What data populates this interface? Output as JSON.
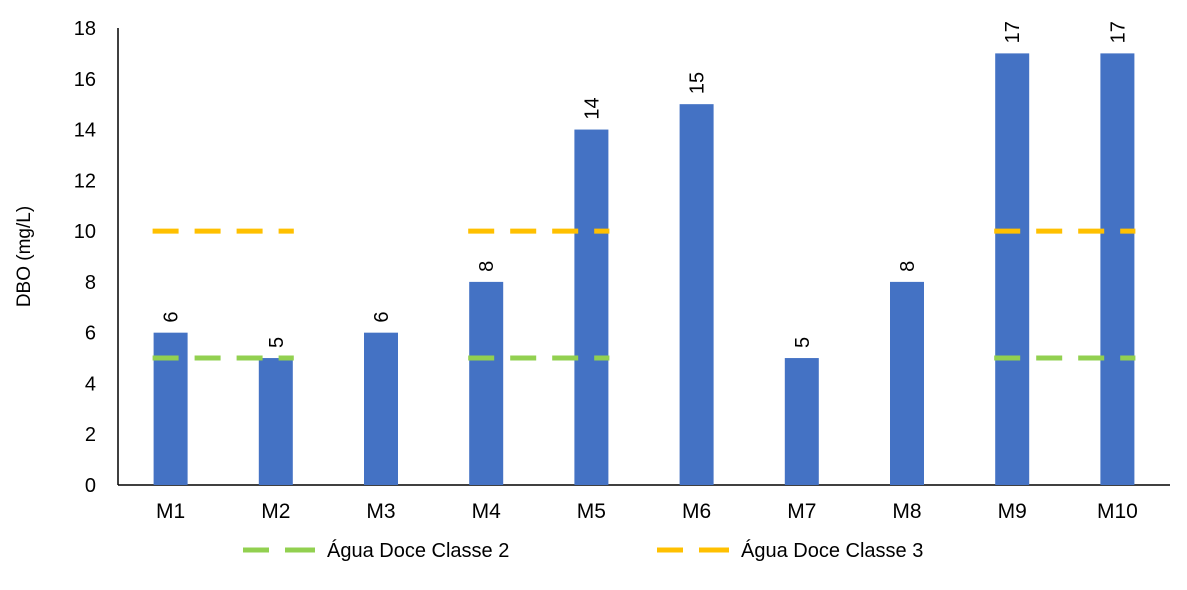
{
  "chart_data": {
    "type": "bar",
    "title": "",
    "xlabel": "",
    "ylabel": "DBO (mg/L)",
    "ylim": [
      0,
      18
    ],
    "yticks": [
      "0",
      "2",
      "4",
      "6",
      "8",
      "10",
      "12",
      "14",
      "16",
      "18"
    ],
    "categories": [
      "M1",
      "M2",
      "M3",
      "M4",
      "M5",
      "M6",
      "M7",
      "M8",
      "M9",
      "M10"
    ],
    "values": [
      6,
      5,
      6,
      8,
      14,
      15,
      5,
      8,
      17,
      17
    ],
    "data_labels": [
      "6",
      "5",
      "6",
      "8",
      "14",
      "15",
      "5",
      "8",
      "17",
      "17"
    ],
    "bar_color": "#4472C4",
    "reference_series": [
      {
        "name": "Água Doce Classe 2",
        "value": 5,
        "color": "#92D050",
        "style": "dashed",
        "segments": [
          [
            "M1",
            "M2"
          ],
          [
            "M4",
            "M5"
          ],
          [
            "M9",
            "M10"
          ]
        ]
      },
      {
        "name": "Água Doce Classe 3",
        "value": 10,
        "color": "#FFC000",
        "style": "dashed",
        "segments": [
          [
            "M1",
            "M2"
          ],
          [
            "M4",
            "M5"
          ],
          [
            "M9",
            "M10"
          ]
        ]
      }
    ],
    "grid": false,
    "legend_position": "bottom"
  }
}
